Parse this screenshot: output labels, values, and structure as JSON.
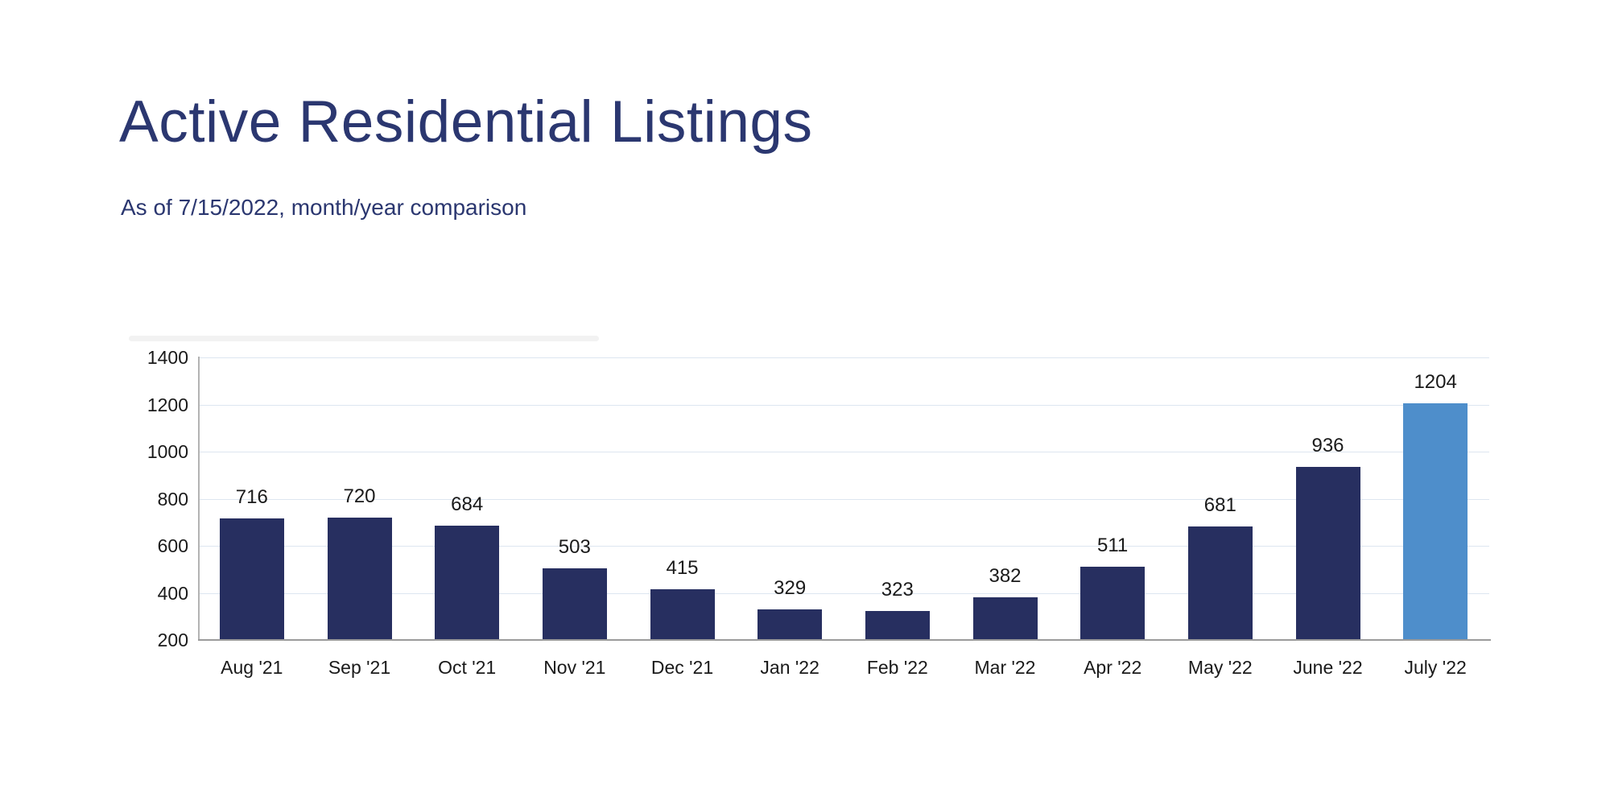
{
  "header": {
    "title": "Active Residential Listings",
    "subtitle": "As of 7/15/2022, month/year comparison",
    "title_color": "#2b3770"
  },
  "chart_data": {
    "type": "bar",
    "title": "Active Residential Listings",
    "subtitle": "As of 7/15/2022, month/year comparison",
    "categories": [
      "Aug '21",
      "Sep '21",
      "Oct '21",
      "Nov '21",
      "Dec '21",
      "Jan '22",
      "Feb '22",
      "Mar '22",
      "Apr '22",
      "May '22",
      "June '22",
      "July '22"
    ],
    "values": [
      716,
      720,
      684,
      503,
      415,
      329,
      323,
      382,
      511,
      681,
      936,
      1204
    ],
    "xlabel": "",
    "ylabel": "",
    "ylim": [
      200,
      1400
    ],
    "yticks": [
      200,
      400,
      600,
      800,
      1000,
      1200,
      1400
    ],
    "grid": true,
    "legend": "none",
    "colors": {
      "bar_default": "#272f60",
      "bar_highlight": "#4e8ecb",
      "highlight_index": 11,
      "gridline": "#dde6f0",
      "axis_line": "#9b9b9b",
      "spine": "#b3b3b3",
      "tick_label": "#1a1a1a",
      "value_label": "#1a1a1a",
      "title": "#2b3770"
    }
  }
}
